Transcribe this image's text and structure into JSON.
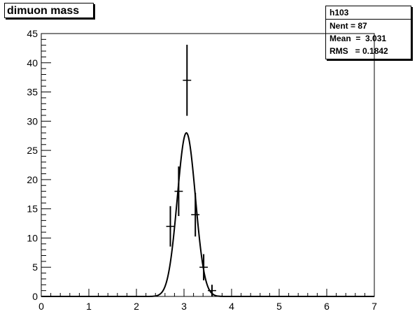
{
  "title": "dimuon mass",
  "stats": {
    "name": "h103",
    "entries": "Nent = 87",
    "mean": "Mean  =  3.031",
    "rms": "RMS   = 0.1842"
  },
  "chart_data": {
    "type": "histogram-with-fit",
    "title": "dimuon mass",
    "xlim": [
      0,
      7
    ],
    "ylim": [
      0,
      45
    ],
    "x_ticks": [
      0,
      1,
      2,
      3,
      4,
      5,
      6,
      7
    ],
    "y_ticks": [
      0,
      5,
      10,
      15,
      20,
      25,
      30,
      35,
      40,
      45
    ],
    "bin_width": 0.175,
    "points": [
      {
        "x": 2.713,
        "y": 12,
        "err": 3.46
      },
      {
        "x": 2.888,
        "y": 18,
        "err": 4.24
      },
      {
        "x": 3.063,
        "y": 37,
        "err": 6.08
      },
      {
        "x": 3.238,
        "y": 14,
        "err": 3.74
      },
      {
        "x": 3.413,
        "y": 5,
        "err": 2.24
      },
      {
        "x": 3.588,
        "y": 1,
        "err": 1.0
      }
    ],
    "fit": {
      "type": "gaussian",
      "amplitude": 28,
      "mean": 3.05,
      "sigma": 0.19
    }
  }
}
